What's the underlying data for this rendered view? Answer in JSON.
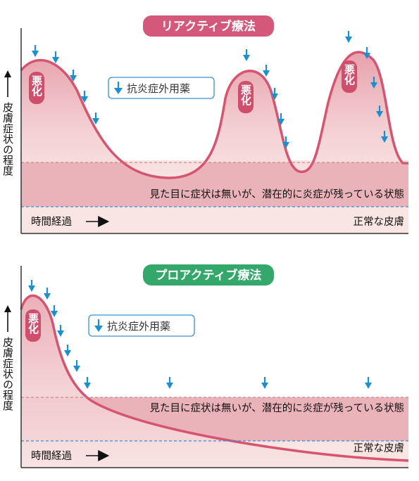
{
  "colors": {
    "reactive_accent": "#d4587a",
    "proactive_accent": "#34a86a",
    "curve": "#d6546f",
    "arrow": "#1a8fd1",
    "latent_band": "#e9b3b9",
    "normal_band": "#f9e6e3",
    "dashed_line": "#3a8fd6"
  },
  "reactive": {
    "title": "リアクティブ療法",
    "ylabel": "皮膚症状の程度",
    "legend_label": "抗炎症外用薬",
    "legend_icon": "down-arrow-icon",
    "latent_text": "見た目に症状は無いが、潜在的に炎症が残っている状態",
    "time_label": "時間経過",
    "time_icon": "right-arrow-icon",
    "normal_label": "正常な皮膚",
    "flare_label": "悪化"
  },
  "proactive": {
    "title": "プロアクティブ療法",
    "ylabel": "皮膚症状の程度",
    "legend_label": "抗炎症外用薬",
    "legend_icon": "down-arrow-icon",
    "latent_text": "見た目に症状は無いが、潜在的に炎症が残っている状態",
    "time_label": "時間経過",
    "time_icon": "right-arrow-icon",
    "normal_label": "正常な皮膚",
    "flare_label": "悪化"
  }
}
